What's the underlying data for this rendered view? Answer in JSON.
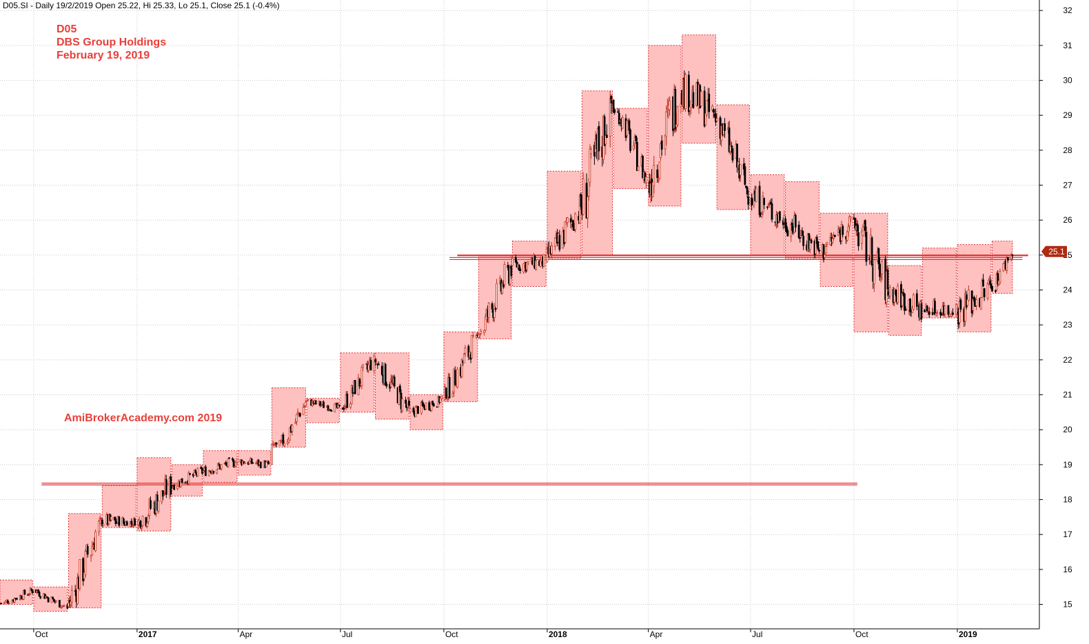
{
  "header": {
    "info_line": "D05.SI - Daily 19/2/2019 Open 25.22, Hi 25.33, Lo 25.1, Close 25.1 (-0.4%)"
  },
  "title_block": {
    "symbol": "D05",
    "company": "DBS Group Holdings",
    "date": "February 19, 2019"
  },
  "watermark": "AmiBrokerAcademy.com   2019",
  "colors": {
    "box_fill": "#ffc0c0",
    "box_border": "#e03030",
    "line": "#e03030",
    "grid": "#c8c8c8",
    "candle_up": "#c0301a",
    "candle_down": "#000000",
    "price_tag": "#b02a10",
    "text_red": "#e8403a"
  },
  "chart_data": {
    "type": "candlestick",
    "y_axis": {
      "min": 15,
      "max": 32,
      "side": "right",
      "ticks": [
        15,
        16,
        17,
        18,
        19,
        20,
        21,
        22,
        23,
        24,
        25,
        26,
        27,
        28,
        29,
        30,
        31,
        32
      ]
    },
    "x_axis": {
      "start": "2016-09-01",
      "end": "2019-03-15",
      "ticks": [
        {
          "date": "2016-10-01",
          "label": "Oct",
          "bold": false
        },
        {
          "date": "2017-01-01",
          "label": "2017",
          "bold": true
        },
        {
          "date": "2017-04-01",
          "label": "Apr",
          "bold": false
        },
        {
          "date": "2017-07-01",
          "label": "Jul",
          "bold": false
        },
        {
          "date": "2017-10-01",
          "label": "Oct",
          "bold": false
        },
        {
          "date": "2018-01-01",
          "label": "2018",
          "bold": true
        },
        {
          "date": "2018-04-01",
          "label": "Apr",
          "bold": false
        },
        {
          "date": "2018-07-01",
          "label": "Jul",
          "bold": false
        },
        {
          "date": "2018-10-01",
          "label": "Oct",
          "bold": false
        },
        {
          "date": "2019-01-01",
          "label": "2019",
          "bold": true
        }
      ]
    },
    "last_price": 25.1,
    "last_price_label": "25.1",
    "monthly_boxes": [
      {
        "start": "2016-09-01",
        "end": "2016-09-30",
        "high": 15.7,
        "low": 15.0,
        "from": 15.0,
        "to": 15.4
      },
      {
        "start": "2016-10-01",
        "end": "2016-10-31",
        "high": 15.5,
        "low": 14.8,
        "from": 15.4,
        "to": 14.9
      },
      {
        "start": "2016-11-01",
        "end": "2016-11-30",
        "high": 17.6,
        "low": 14.9,
        "from": 14.9,
        "to": 17.4
      },
      {
        "start": "2016-12-01",
        "end": "2016-12-31",
        "high": 18.4,
        "low": 17.2,
        "from": 17.4,
        "to": 17.3
      },
      {
        "start": "2017-01-01",
        "end": "2017-01-31",
        "high": 19.2,
        "low": 17.1,
        "from": 17.3,
        "to": 18.4
      },
      {
        "start": "2017-02-01",
        "end": "2017-02-28",
        "high": 19.0,
        "low": 18.1,
        "from": 18.4,
        "to": 18.8
      },
      {
        "start": "2017-03-01",
        "end": "2017-03-31",
        "high": 19.4,
        "low": 18.5,
        "from": 18.8,
        "to": 19.1
      },
      {
        "start": "2017-04-01",
        "end": "2017-04-30",
        "high": 19.4,
        "low": 18.7,
        "from": 19.1,
        "to": 19.0
      },
      {
        "start": "2017-05-01",
        "end": "2017-05-31",
        "high": 21.2,
        "low": 19.5,
        "from": 19.0,
        "to": 20.8
      },
      {
        "start": "2017-06-01",
        "end": "2017-06-30",
        "high": 20.9,
        "low": 20.2,
        "from": 20.8,
        "to": 20.6
      },
      {
        "start": "2017-07-01",
        "end": "2017-07-31",
        "high": 22.2,
        "low": 20.5,
        "from": 20.6,
        "to": 22.0
      },
      {
        "start": "2017-08-01",
        "end": "2017-08-31",
        "high": 22.2,
        "low": 20.3,
        "from": 22.0,
        "to": 20.5
      },
      {
        "start": "2017-09-01",
        "end": "2017-09-30",
        "high": 21.0,
        "low": 20.0,
        "from": 20.5,
        "to": 20.9
      },
      {
        "start": "2017-10-01",
        "end": "2017-10-31",
        "high": 22.8,
        "low": 20.8,
        "from": 20.9,
        "to": 22.7
      },
      {
        "start": "2017-11-01",
        "end": "2017-11-30",
        "high": 25.0,
        "low": 22.6,
        "from": 22.7,
        "to": 24.7
      },
      {
        "start": "2017-12-01",
        "end": "2017-12-31",
        "high": 25.4,
        "low": 24.1,
        "from": 24.7,
        "to": 24.8
      },
      {
        "start": "2018-01-01",
        "end": "2018-01-31",
        "high": 27.4,
        "low": 24.9,
        "from": 24.8,
        "to": 26.4
      },
      {
        "start": "2018-02-01",
        "end": "2018-02-28",
        "high": 29.7,
        "low": 25.0,
        "from": 26.4,
        "to": 29.5
      },
      {
        "start": "2018-03-01",
        "end": "2018-03-31",
        "high": 29.2,
        "low": 26.9,
        "from": 29.5,
        "to": 27.1
      },
      {
        "start": "2018-04-01",
        "end": "2018-04-30",
        "high": 31.0,
        "low": 26.4,
        "from": 27.1,
        "to": 29.8
      },
      {
        "start": "2018-05-01",
        "end": "2018-05-31",
        "high": 31.3,
        "low": 28.2,
        "from": 29.8,
        "to": 28.9
      },
      {
        "start": "2018-06-01",
        "end": "2018-06-30",
        "high": 29.3,
        "low": 26.3,
        "from": 28.9,
        "to": 26.7
      },
      {
        "start": "2018-07-01",
        "end": "2018-07-31",
        "high": 27.3,
        "low": 25.0,
        "from": 26.7,
        "to": 26.0
      },
      {
        "start": "2018-08-01",
        "end": "2018-08-31",
        "high": 27.1,
        "low": 24.9,
        "from": 26.0,
        "to": 25.1
      },
      {
        "start": "2018-09-01",
        "end": "2018-09-30",
        "high": 26.2,
        "low": 24.1,
        "from": 25.1,
        "to": 26.0
      },
      {
        "start": "2018-10-01",
        "end": "2018-10-31",
        "high": 26.2,
        "low": 22.8,
        "from": 26.0,
        "to": 24.0
      },
      {
        "start": "2018-11-01",
        "end": "2018-11-30",
        "high": 24.7,
        "low": 22.7,
        "from": 24.0,
        "to": 23.4
      },
      {
        "start": "2018-12-01",
        "end": "2018-12-31",
        "high": 25.2,
        "low": 23.2,
        "from": 23.4,
        "to": 23.4
      },
      {
        "start": "2019-01-01",
        "end": "2019-01-31",
        "high": 25.3,
        "low": 22.8,
        "from": 23.4,
        "to": 24.1
      },
      {
        "start": "2019-02-01",
        "end": "2019-02-19",
        "high": 25.4,
        "low": 23.9,
        "from": 24.1,
        "to": 25.1
      }
    ],
    "horizontal_lines": [
      {
        "from": "2016-10-08",
        "to": "2018-10-04",
        "y": 18.47,
        "y2": 18.42
      },
      {
        "from": "2017-10-06",
        "to": "2019-02-28",
        "y": 24.93,
        "y2": 24.87
      },
      {
        "from": "2017-10-13",
        "to": "2019-03-05",
        "y": 25.0,
        "y2": 24.98
      }
    ]
  }
}
